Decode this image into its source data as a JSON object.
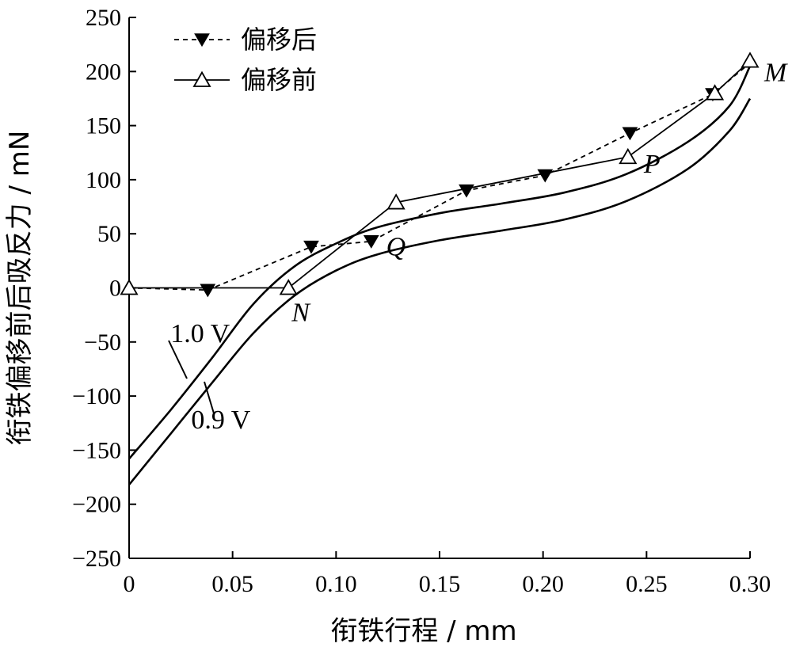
{
  "chart_data": {
    "type": "line",
    "xlabel": "衔铁行程 / mm",
    "ylabel": "衔铁偏移前后吸反力 / mN",
    "xlim": [
      0,
      0.3
    ],
    "ylim": [
      -250,
      250
    ],
    "x_ticks": [
      0,
      0.05,
      0.1,
      0.15,
      0.2,
      0.25,
      0.3
    ],
    "x_tick_labels": [
      "0",
      "0.05",
      "0.10",
      "0.15",
      "0.20",
      "0.25",
      "0.30"
    ],
    "y_ticks": [
      -250,
      -200,
      -150,
      -100,
      -50,
      0,
      50,
      100,
      150,
      200,
      250
    ],
    "y_tick_labels": [
      "−250",
      "−200",
      "−150",
      "−100",
      "−50",
      "0",
      "50",
      "100",
      "150",
      "200",
      "250"
    ],
    "grid": false,
    "legend_position": "top-left",
    "series": [
      {
        "name": "偏移后",
        "style": "dashed",
        "marker": "filled-down-triangle",
        "x": [
          0,
          0.038,
          0.088,
          0.117,
          0.163,
          0.201,
          0.242,
          0.282,
          0.3
        ],
        "y": [
          0,
          -2,
          38,
          43,
          90,
          104,
          143,
          179,
          208
        ]
      },
      {
        "name": "偏移前",
        "style": "solid",
        "marker": "open-up-triangle",
        "x": [
          0,
          0.077,
          0.129,
          0.241,
          0.283,
          0.3
        ],
        "y": [
          0,
          0,
          79,
          121,
          180,
          210
        ]
      },
      {
        "name": "1.0 V",
        "style": "solid",
        "marker": "none",
        "x": [
          0,
          0.02,
          0.04,
          0.06,
          0.08,
          0.1,
          0.12,
          0.15,
          0.18,
          0.21,
          0.24,
          0.27,
          0.29,
          0.3
        ],
        "y": [
          -158,
          -113,
          -65,
          -15,
          20,
          41,
          56,
          69,
          78,
          88,
          105,
          135,
          168,
          205
        ]
      },
      {
        "name": "0.9 V",
        "style": "solid",
        "marker": "none",
        "x": [
          0,
          0.02,
          0.04,
          0.06,
          0.08,
          0.1,
          0.12,
          0.15,
          0.18,
          0.21,
          0.24,
          0.27,
          0.29,
          0.3
        ],
        "y": [
          -182,
          -135,
          -88,
          -42,
          -7,
          16,
          31,
          44,
          53,
          63,
          80,
          110,
          145,
          175
        ]
      }
    ],
    "annotations": [
      {
        "text": "M",
        "x": 0.3,
        "y": 210,
        "style": "italic"
      },
      {
        "text": "P",
        "x": 0.241,
        "y": 121,
        "style": "italic"
      },
      {
        "text": "Q",
        "x": 0.125,
        "y": 30,
        "style": "italic"
      },
      {
        "text": "N",
        "x": 0.077,
        "y": 0,
        "style": "italic"
      },
      {
        "text": "1.0 V",
        "x": 0.02,
        "y": -50,
        "style": "normal"
      },
      {
        "text": "0.9 V",
        "x": 0.03,
        "y": -130,
        "style": "normal"
      }
    ]
  }
}
